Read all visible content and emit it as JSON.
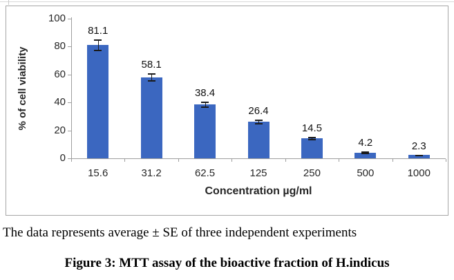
{
  "chart_data": {
    "type": "bar",
    "title": "",
    "categories": [
      "15.6",
      "31.2",
      "62.5",
      "125",
      "250",
      "500",
      "1000"
    ],
    "values": [
      81.1,
      58.1,
      38.4,
      26.4,
      14.5,
      4.2,
      2.3
    ],
    "value_labels": [
      "81.1",
      "58.1",
      "38.4",
      "26.4",
      "14.5",
      "4.2",
      "2.3"
    ],
    "errors": [
      4.0,
      2.6,
      2.0,
      1.4,
      1.0,
      0.7,
      0.4
    ],
    "xlabel": "Concentration µg/ml",
    "ylabel": "% of cell viability",
    "ylim": [
      0,
      100
    ],
    "yticks": [
      0,
      20,
      40,
      60,
      80,
      100
    ],
    "grid": false,
    "legend_position": "none",
    "bar_color": "#3B67C0",
    "error_color": "#1a1a1a",
    "axis_color": "#9d9d9d",
    "frame_border_color": "#a6a6a6"
  },
  "caption": {
    "note": "The data represents average ± SE of three independent experiments",
    "figure_label": "Figure 3: MTT assay of the bioactive fraction of H.indicus"
  }
}
